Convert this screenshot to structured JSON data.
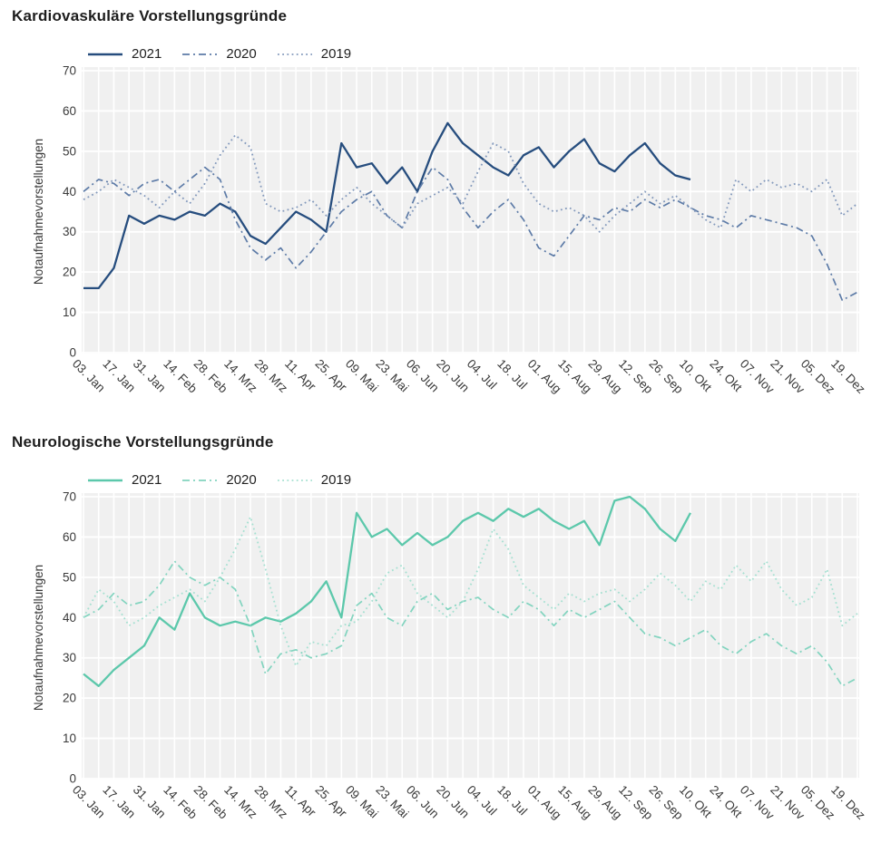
{
  "chart_data": [
    {
      "type": "line",
      "title": "Kardiovaskuläre Vorstellungsgründe",
      "ylabel": "Notaufnahmevorstellungen",
      "ylim": [
        0,
        70
      ],
      "y_ticks": [
        0,
        10,
        20,
        30,
        40,
        50,
        60,
        70
      ],
      "grid": true,
      "plot_background": "#f0f0f0",
      "grid_color": "#ffffff",
      "legend_position": "top-left",
      "x_unit": "week_of_year",
      "x_tick_step_weeks": 2,
      "x_tick_labels": [
        "03. Jan",
        "17. Jan",
        "31. Jan",
        "14. Feb",
        "28. Feb",
        "14. Mrz",
        "28. Mrz",
        "11. Apr",
        "25. Apr",
        "09. Mai",
        "23. Mai",
        "06. Jun",
        "20. Jun",
        "04. Jul",
        "18. Jul",
        "01. Aug",
        "15. Aug",
        "29. Aug",
        "12. Sep",
        "26. Sep",
        "10. Okt",
        "24. Okt",
        "07. Nov",
        "21. Nov",
        "05. Dez",
        "19. Dez"
      ],
      "series": [
        {
          "name": "2021",
          "style": "solid",
          "color": "#264d7e",
          "values": [
            16,
            16,
            21,
            34,
            32,
            34,
            33,
            35,
            34,
            37,
            35,
            29,
            27,
            31,
            35,
            33,
            30,
            52,
            46,
            47,
            42,
            46,
            40,
            50,
            57,
            52,
            49,
            46,
            44,
            49,
            51,
            46,
            50,
            53,
            47,
            45,
            49,
            52,
            47,
            44,
            43
          ]
        },
        {
          "name": "2020",
          "style": "dashdot",
          "color": "#5d7ba7",
          "values": [
            40,
            43,
            42,
            39,
            42,
            43,
            40,
            43,
            46,
            43,
            33,
            26,
            23,
            26,
            21,
            25,
            30,
            35,
            38,
            40,
            34,
            31,
            40,
            46,
            43,
            36,
            31,
            35,
            38,
            33,
            26,
            24,
            29,
            34,
            33,
            36,
            35,
            38,
            36,
            38,
            36,
            34,
            33,
            31,
            34,
            33,
            32,
            31,
            29,
            22,
            13,
            15
          ]
        },
        {
          "name": "2019",
          "style": "dotted",
          "color": "#8399bc",
          "values": [
            38,
            40,
            43,
            41,
            39,
            36,
            40,
            37,
            42,
            49,
            54,
            51,
            37,
            35,
            36,
            38,
            34,
            38,
            41,
            37,
            34,
            31,
            37,
            39,
            41,
            37,
            45,
            52,
            50,
            42,
            37,
            35,
            36,
            34,
            30,
            34,
            37,
            40,
            37,
            39,
            36,
            33,
            31,
            43,
            40,
            43,
            41,
            42,
            40,
            43,
            34,
            37
          ]
        }
      ]
    },
    {
      "type": "line",
      "title": "Neurologische Vorstellungsgründe",
      "ylabel": "Notaufnahmevorstellungen",
      "ylim": [
        0,
        70
      ],
      "y_ticks": [
        0,
        10,
        20,
        30,
        40,
        50,
        60,
        70
      ],
      "grid": true,
      "plot_background": "#f0f0f0",
      "grid_color": "#ffffff",
      "legend_position": "top-left",
      "x_unit": "week_of_year",
      "x_tick_step_weeks": 2,
      "x_tick_labels": [
        "03. Jan",
        "17. Jan",
        "31. Jan",
        "14. Feb",
        "28. Feb",
        "14. Mrz",
        "28. Mrz",
        "11. Apr",
        "25. Apr",
        "09. Mai",
        "23. Mai",
        "06. Jun",
        "20. Jun",
        "04. Jul",
        "18. Jul",
        "01. Aug",
        "15. Aug",
        "29. Aug",
        "12. Sep",
        "26. Sep",
        "10. Okt",
        "24. Okt",
        "07. Nov",
        "21. Nov",
        "05. Dez",
        "19. Dez"
      ],
      "series": [
        {
          "name": "2021",
          "style": "solid",
          "color": "#5cc8ab",
          "values": [
            26,
            23,
            27,
            30,
            33,
            40,
            37,
            46,
            40,
            38,
            39,
            38,
            40,
            39,
            41,
            44,
            49,
            40,
            66,
            60,
            62,
            58,
            61,
            58,
            60,
            64,
            66,
            64,
            67,
            65,
            67,
            64,
            62,
            64,
            58,
            69,
            70,
            67,
            62,
            59,
            66
          ]
        },
        {
          "name": "2020",
          "style": "dashdot",
          "color": "#82d4bf",
          "values": [
            40,
            42,
            46,
            43,
            44,
            48,
            54,
            50,
            48,
            50,
            47,
            38,
            26,
            31,
            32,
            30,
            31,
            33,
            43,
            46,
            40,
            38,
            44,
            46,
            42,
            44,
            45,
            42,
            40,
            44,
            42,
            38,
            42,
            40,
            42,
            44,
            40,
            36,
            35,
            33,
            35,
            37,
            33,
            31,
            34,
            36,
            33,
            31,
            33,
            29,
            23,
            25
          ]
        },
        {
          "name": "2019",
          "style": "dotted",
          "color": "#a5e0d1",
          "values": [
            40,
            47,
            44,
            38,
            40,
            43,
            45,
            47,
            44,
            50,
            57,
            65,
            52,
            38,
            28,
            34,
            33,
            38,
            39,
            44,
            51,
            53,
            46,
            43,
            40,
            44,
            52,
            62,
            57,
            48,
            45,
            42,
            46,
            44,
            46,
            47,
            44,
            47,
            51,
            48,
            44,
            49,
            47,
            53,
            49,
            54,
            47,
            43,
            45,
            52,
            38,
            41
          ]
        }
      ]
    }
  ]
}
